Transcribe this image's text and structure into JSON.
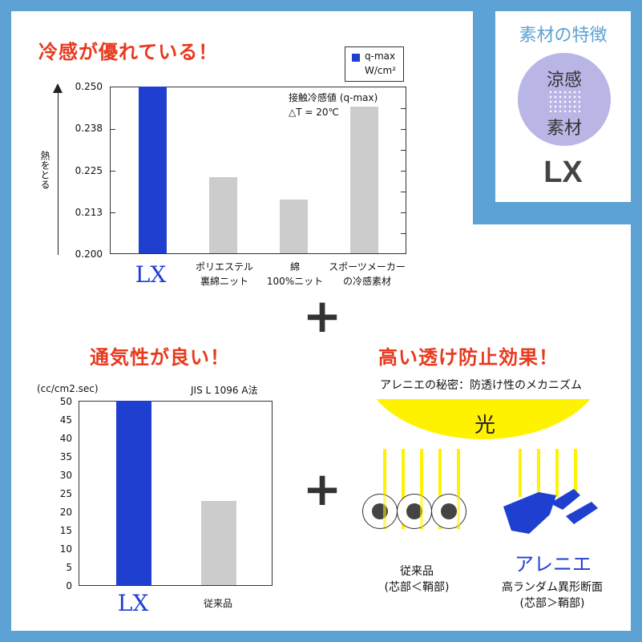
{
  "feature": {
    "heading": "素材の特徴",
    "circle_line1": "涼感",
    "circle_line2": "素材",
    "name": "LX"
  },
  "chart1": {
    "title": "冷感が優れている！",
    "legend_label_1": "q-max",
    "legend_label_2": "W/cm²",
    "note_line1": "接触冷感値 (q-max)",
    "note_line2": "△T = 20℃",
    "ylabel": "熱をとる",
    "yticks": [
      "0.250",
      "0.238",
      "0.225",
      "0.213",
      "0.200"
    ],
    "categories": [
      {
        "line1": "LX",
        "line2": ""
      },
      {
        "line1": "ポリエステル",
        "line2": "裏綿ニット"
      },
      {
        "line1": "綿",
        "line2": "100%ニット"
      },
      {
        "line1": "スポーツメーカー",
        "line2": "の冷感素材"
      }
    ]
  },
  "plus1": "+",
  "plus2": "+",
  "chart2": {
    "title": "通気性が良い！",
    "unit": "(cc/cm2.sec)",
    "note": "JIS L 1096  A法",
    "yticks": [
      "50",
      "45",
      "40",
      "35",
      "30",
      "25",
      "20",
      "15",
      "10",
      "5",
      "0"
    ],
    "categories": [
      "LX",
      "従来品"
    ]
  },
  "light": {
    "title": "高い透け防止効果！",
    "subtitle": "アレニエの秘密：防透け性のメカニズム",
    "light_label": "光",
    "left_caption_1": "従来品",
    "left_caption_2": "(芯部＜鞘部)",
    "right_brand": "アレニエ",
    "right_caption_1": "高ランダム異形断面",
    "right_caption_2": "(芯部＞鞘部)"
  },
  "colors": {
    "frame": "#5da2d4",
    "blue": "#1f3fd1",
    "gray": "#cccccc",
    "red": "#e8391d",
    "yellow": "#fff200",
    "circle": "#b9b6e6"
  },
  "chart_data": [
    {
      "type": "bar",
      "title": "冷感が優れている！",
      "ylabel": "熱をとる",
      "categories": [
        "LX",
        "ポリエステル 裏綿ニット",
        "綿 100%ニット",
        "スポーツメーカー の冷感素材"
      ],
      "series": [
        {
          "name": "q-max W/cm²",
          "values": [
            0.25,
            0.222,
            0.216,
            0.243
          ]
        }
      ],
      "ylim": [
        0.2,
        0.25
      ]
    },
    {
      "type": "bar",
      "title": "通気性が良い！",
      "ylabel": "(cc/cm2.sec)",
      "categories": [
        "LX",
        "従来品"
      ],
      "values": [
        50,
        23
      ],
      "ylim": [
        0,
        50
      ]
    }
  ]
}
